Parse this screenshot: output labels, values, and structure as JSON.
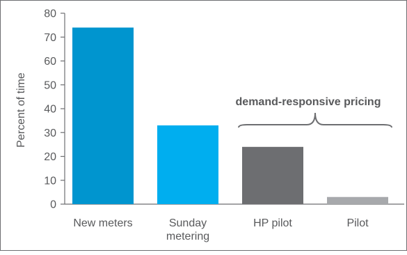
{
  "chart_data": {
    "type": "bar",
    "categories": [
      [
        "New meters"
      ],
      [
        "Sunday",
        "metering"
      ],
      [
        "HP pilot"
      ],
      [
        "Pilot"
      ]
    ],
    "values": [
      74,
      33,
      24,
      3
    ],
    "colors": [
      "#0095cf",
      "#00aeef",
      "#6d6e71",
      "#a7a9ac"
    ],
    "ylabel": "Percent of time",
    "xlabel": "",
    "ylim": [
      0,
      80
    ],
    "yticks": [
      0,
      10,
      20,
      30,
      40,
      50,
      60,
      70,
      80
    ],
    "grid": false,
    "annotation": {
      "text": "demand-responsive pricing",
      "spans_categories": [
        "HP pilot",
        "Pilot"
      ],
      "shape": "curly-brace"
    }
  }
}
